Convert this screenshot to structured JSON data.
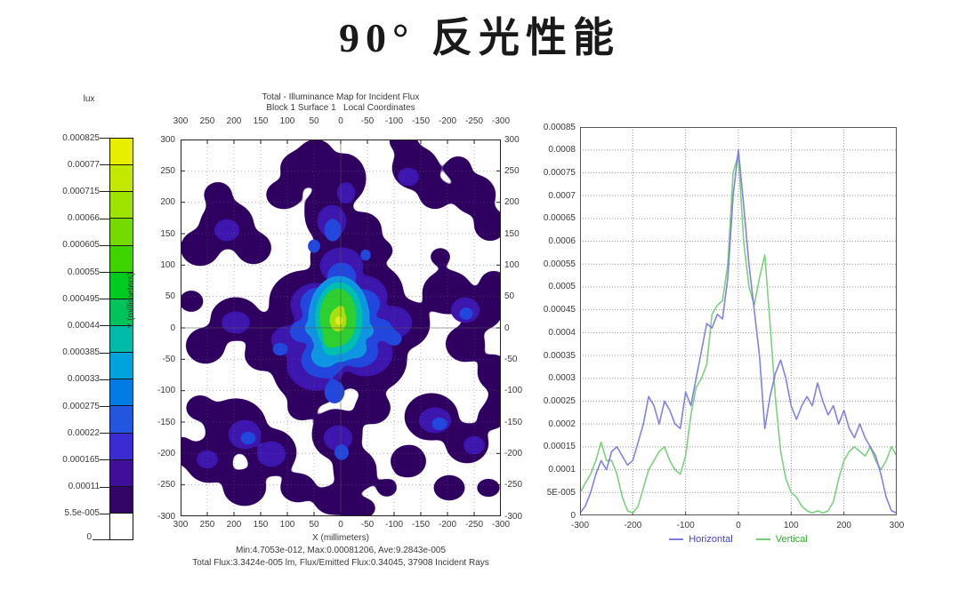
{
  "page_title": "90° 反光性能",
  "colorbar": {
    "unit_label": "lux",
    "tick_labels": [
      "0.000825",
      "0.00077",
      "0.000715",
      "0.00066",
      "0.000605",
      "0.00055",
      "0.000495",
      "0.00044",
      "0.000385",
      "0.00033",
      "0.000275",
      "0.00022",
      "0.000165",
      "0.00011",
      "5.5e-005"
    ],
    "zero_label": "0",
    "band_colors": [
      "#e8ee00",
      "#c4e800",
      "#9fe300",
      "#74da00",
      "#3ed400",
      "#00cb1e",
      "#00c35c",
      "#00bba8",
      "#00a3dc",
      "#007ce4",
      "#2356de",
      "#3b2bd2",
      "#3f0f9a",
      "#330566",
      "#ffffff"
    ]
  },
  "illuminance_map": {
    "title_line1": "Total - Illuminance Map for Incident Flux",
    "title_line2": "Block 1 Surface 1   Local Coordinates",
    "x_axis_label": "X (millimeters)",
    "y_axis_label": "Y (millimeters)",
    "x_tick_labels": [
      "300",
      "250",
      "200",
      "150",
      "100",
      "50",
      "0",
      "-50",
      "-100",
      "-150",
      "-200",
      "-250",
      "-300"
    ],
    "y_tick_labels": [
      "300",
      "250",
      "200",
      "150",
      "100",
      "50",
      "0",
      "-50",
      "-100",
      "-150",
      "-200",
      "-250",
      "-300"
    ],
    "stats_line1": "Min:4.7053e-012, Max:0.00081206, Ave:9.2843e-005",
    "stats_line2": "Total Flux:3.3424e-005 lm, Flux/Emitted Flux:0.34045, 37908 Incident Rays"
  },
  "chart_data": [
    {
      "type": "heatmap",
      "title": "Total - Illuminance Map for Incident Flux",
      "subtitle": "Block 1 Surface 1   Local Coordinates",
      "xlabel": "X (millimeters)",
      "ylabel": "Y (millimeters)",
      "xlim": [
        300,
        -300
      ],
      "ylim": [
        -300,
        300
      ],
      "x_ticks": [
        300,
        250,
        200,
        150,
        100,
        50,
        0,
        -50,
        -100,
        -150,
        -200,
        -250,
        -300
      ],
      "y_ticks": [
        300,
        250,
        200,
        150,
        100,
        50,
        0,
        -50,
        -100,
        -150,
        -200,
        -250,
        -300
      ],
      "grid": true,
      "colorbar_unit": "lux",
      "colorbar_ticks": [
        0.000825,
        0.00077,
        0.000715,
        0.00066,
        0.000605,
        0.00055,
        0.000495,
        0.00044,
        0.000385,
        0.00033,
        0.000275,
        0.00022,
        0.000165,
        0.00011,
        5.5e-05,
        0
      ],
      "min": 4.7053e-12,
      "max": 0.00081206,
      "ave": 9.2843e-05,
      "total_flux_lm": 3.3424e-05,
      "flux_per_emitted_flux": 0.34045,
      "incident_rays": 37908,
      "peak_location_mm": [
        0,
        0
      ],
      "blob_layers": [
        {
          "color": "#2e0560",
          "blur": 6,
          "blobs": [
            [
              175,
              210,
              58,
              52
            ],
            [
              148,
              258,
              44,
              40
            ],
            [
              214,
              248,
              40,
              36
            ],
            [
              140,
              182,
              40,
              34
            ],
            [
              214,
              172,
              36,
              32
            ],
            [
              180,
              132,
              34,
              28
            ],
            [
              248,
              208,
              32,
              28
            ],
            [
              112,
              222,
              34,
              28
            ],
            [
              166,
              84,
              26,
              32
            ],
            [
              184,
              44,
              24,
              28
            ],
            [
              152,
              18,
              20,
              18
            ],
            [
              204,
              102,
              22,
              20
            ],
            [
              140,
              32,
              28,
              20
            ],
            [
              116,
              62,
              20,
              16
            ],
            [
              264,
              32,
              26,
              24
            ],
            [
              286,
              62,
              18,
              16
            ],
            [
              250,
              2,
              16,
              12
            ],
            [
              330,
              62,
              24,
              22
            ],
            [
              348,
              96,
              18,
              18
            ],
            [
              312,
              32,
              15,
              13
            ],
            [
              300,
              172,
              28,
              24
            ],
            [
              338,
              192,
              24,
              22
            ],
            [
              352,
              162,
              16,
              14
            ],
            [
              320,
              230,
              22,
              20
            ],
            [
              352,
              262,
              18,
              20
            ],
            [
              358,
              300,
              14,
              18
            ],
            [
              52,
              96,
              30,
              26
            ],
            [
              22,
              122,
              22,
              20
            ],
            [
              82,
              122,
              20,
              18
            ],
            [
              42,
              62,
              16,
              14
            ],
            [
              62,
              202,
              28,
              24
            ],
            [
              28,
              232,
              22,
              20
            ],
            [
              92,
              242,
              20,
              18
            ],
            [
              12,
              182,
              14,
              12
            ],
            [
              2,
              350,
              12,
              16
            ],
            [
              62,
              322,
              34,
              30
            ],
            [
              32,
              362,
              26,
              24
            ],
            [
              102,
              352,
              28,
              26
            ],
            [
              72,
              392,
              24,
              20
            ],
            [
              132,
              392,
              20,
              16
            ],
            [
              22,
              302,
              16,
              14
            ],
            [
              176,
              332,
              28,
              28
            ],
            [
              196,
              372,
              24,
              24
            ],
            [
              172,
              406,
              22,
              16
            ],
            [
              216,
              302,
              20,
              18
            ],
            [
              200,
              415,
              20,
              12
            ],
            [
              282,
              312,
              30,
              26
            ],
            [
              322,
              342,
              24,
              22
            ],
            [
              256,
              362,
              20,
              18
            ],
            [
              350,
              312,
              16,
              14
            ],
            [
              302,
              392,
              18,
              14
            ],
            [
              346,
              392,
              14,
              10
            ],
            [
              225,
              125,
              14,
              12
            ],
            [
              292,
              132,
              12,
              10
            ],
            [
              136,
              302,
              16,
              14
            ],
            [
              232,
              392,
              12,
              10
            ]
          ]
        },
        {
          "color": "#3c14ae",
          "blur": 4,
          "blobs": [
            [
              176,
              212,
              48,
              42
            ],
            [
              152,
              254,
              32,
              28
            ],
            [
              208,
              240,
              30,
              26
            ],
            [
              152,
              186,
              28,
              24
            ],
            [
              206,
              176,
              26,
              22
            ],
            [
              181,
              142,
              24,
              20
            ],
            [
              238,
              206,
              22,
              18
            ],
            [
              122,
              226,
              20,
              16
            ],
            [
              170,
              92,
              16,
              18
            ],
            [
              72,
              332,
              18,
              16
            ],
            [
              102,
              354,
              16,
              14
            ],
            [
              286,
              316,
              18,
              14
            ],
            [
              320,
              192,
              16,
              14
            ],
            [
              62,
              206,
              16,
              12
            ],
            [
              177,
              336,
              16,
              14
            ],
            [
              256,
              42,
              12,
              10
            ],
            [
              52,
              102,
              14,
              12
            ],
            [
              186,
              60,
              10,
              12
            ],
            [
              30,
              360,
              12,
              10
            ],
            [
              330,
              344,
              12,
              10
            ]
          ]
        },
        {
          "color": "#2247dd",
          "blur": 4,
          "blobs": [
            [
              178,
              206,
              40,
              42
            ],
            [
              160,
              248,
              24,
              20
            ],
            [
              200,
              238,
              22,
              18
            ],
            [
              155,
              185,
              20,
              18
            ],
            [
              204,
              185,
              20,
              16
            ],
            [
              181,
              155,
              16,
              16
            ],
            [
              224,
              214,
              14,
              12
            ],
            [
              137,
              216,
              14,
              12
            ],
            [
              171,
              102,
              9,
              13
            ],
            [
              173,
              284,
              11,
              13
            ],
            [
              240,
              224,
              9,
              8
            ],
            [
              112,
              236,
              9,
              7
            ],
            [
              76,
              336,
              9,
              7
            ],
            [
              291,
              320,
              9,
              7
            ],
            [
              321,
              196,
              8,
              7
            ],
            [
              181,
              352,
              8,
              9
            ],
            [
              150,
              120,
              7,
              8
            ],
            [
              208,
              130,
              6,
              7
            ]
          ]
        },
        {
          "color": "#0f95e2",
          "blur": 3,
          "blobs": [
            [
              178,
              202,
              34,
              48
            ],
            [
              162,
              243,
              15,
              13
            ],
            [
              196,
              235,
              13,
              11
            ],
            [
              161,
              180,
              13,
              11
            ],
            [
              197,
              185,
              12,
              10
            ],
            [
              150,
              212,
              10,
              9
            ],
            [
              208,
              215,
              9,
              8
            ]
          ]
        },
        {
          "color": "#00bfae",
          "blur": 3,
          "blobs": [
            [
              178,
              201,
              26,
              40
            ],
            [
              170,
              234,
              10,
              9
            ],
            [
              189,
              228,
              8,
              7
            ],
            [
              172,
              178,
              8,
              7
            ],
            [
              192,
              195,
              7,
              6
            ]
          ]
        },
        {
          "color": "#2ecf2e",
          "blur": 3,
          "blobs": [
            [
              177,
              200,
              20,
              32
            ],
            [
              170,
              226,
              9,
              8
            ],
            [
              186,
              186,
              7,
              6
            ],
            [
              174,
              178,
              6,
              5
            ]
          ]
        },
        {
          "color": "#aadf10",
          "blur": 2,
          "blobs": [
            [
              177,
              203,
              9,
              13
            ],
            [
              180,
              191,
              4,
              4
            ]
          ]
        },
        {
          "color": "#e4ec20",
          "blur": 2,
          "blobs": [
            [
              178,
              204,
              4,
              5
            ]
          ]
        }
      ]
    },
    {
      "type": "line",
      "title": "",
      "xlabel": "",
      "ylabel": "",
      "xlim": [
        -300,
        300
      ],
      "ylim": [
        0,
        0.00085
      ],
      "x_ticks": [
        -300,
        -200,
        -100,
        0,
        100,
        200,
        300
      ],
      "y_tick_labels": [
        "0.00085",
        "0.0008",
        "0.00075",
        "0.0007",
        "0.00065",
        "0.0006",
        "0.00055",
        "0.0005",
        "0.00045",
        "0.0004",
        "0.00035",
        "0.0003",
        "0.00025",
        "0.0002",
        "0.00015",
        "0.0001",
        "5E-005",
        "0"
      ],
      "grid": true,
      "legend_position": "bottom",
      "x": [
        -300,
        -290,
        -280,
        -270,
        -260,
        -250,
        -240,
        -230,
        -220,
        -210,
        -200,
        -190,
        -180,
        -170,
        -160,
        -150,
        -140,
        -130,
        -120,
        -110,
        -100,
        -90,
        -80,
        -70,
        -60,
        -50,
        -40,
        -30,
        -20,
        -10,
        0,
        10,
        20,
        30,
        40,
        50,
        60,
        70,
        80,
        90,
        100,
        110,
        120,
        130,
        140,
        150,
        160,
        170,
        180,
        190,
        200,
        210,
        220,
        230,
        240,
        250,
        260,
        270,
        280,
        290,
        300
      ],
      "series": [
        {
          "name": "Horizontal",
          "line_color": "#7b7be0",
          "label_color": "#4343cc",
          "values": [
            5e-06,
            2e-05,
            5e-05,
            9e-05,
            0.00012,
            0.0001,
            0.00014,
            0.00015,
            0.00013,
            0.00011,
            0.00012,
            0.00016,
            0.0002,
            0.00026,
            0.00024,
            0.0002,
            0.00025,
            0.00023,
            0.0002,
            0.00019,
            0.00027,
            0.00024,
            0.0003,
            0.00036,
            0.00042,
            0.00041,
            0.00044,
            0.00043,
            0.00052,
            0.0007,
            0.0008,
            0.00068,
            0.00055,
            0.00045,
            0.00035,
            0.00019,
            0.00026,
            0.00031,
            0.00034,
            0.0003,
            0.00024,
            0.00021,
            0.00024,
            0.00026,
            0.00024,
            0.00029,
            0.00025,
            0.00022,
            0.00024,
            0.0002,
            0.00023,
            0.00019,
            0.00017,
            0.0002,
            0.00017,
            0.00015,
            0.00013,
            9e-05,
            4e-05,
            1e-05,
            5e-06
          ]
        },
        {
          "name": "Vertical",
          "line_color": "#76cf76",
          "label_color": "#2fae2f",
          "values": [
            5e-05,
            7e-05,
            9e-05,
            0.00012,
            0.00016,
            0.00012,
            0.00012,
            9e-05,
            4e-05,
            1e-05,
            5e-06,
            2e-05,
            6e-05,
            0.0001,
            0.00012,
            0.00014,
            0.00015,
            0.00012,
            0.0001,
            9e-05,
            0.00013,
            0.00022,
            0.00028,
            0.0003,
            0.00033,
            0.00044,
            0.00046,
            0.00047,
            0.00055,
            0.00075,
            0.00079,
            0.0006,
            0.0005,
            0.00046,
            0.00052,
            0.00057,
            0.00042,
            0.00026,
            0.00014,
            8e-05,
            5e-05,
            4e-05,
            2e-05,
            1e-05,
            5e-06,
            1e-05,
            5e-06,
            1e-05,
            3e-05,
            8e-05,
            0.00012,
            0.00014,
            0.00015,
            0.00014,
            0.00013,
            0.00015,
            0.00012,
            0.0001,
            0.00012,
            0.00015,
            0.00013
          ]
        }
      ]
    }
  ]
}
